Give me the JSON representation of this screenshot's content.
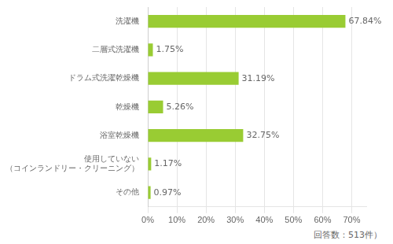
{
  "chart_data": {
    "type": "bar",
    "orientation": "horizontal",
    "categories": [
      "その他",
      "使用していない\n（コインランドリー・クリーニング）",
      "浴室乾燥機",
      "乾燥機",
      "ドラム式洗濯乾燥機",
      "二層式洗濯機",
      "洗濯機"
    ],
    "values": [
      0.97,
      1.17,
      32.75,
      5.26,
      31.19,
      1.75,
      67.84
    ],
    "value_labels": [
      "0.97%",
      "1.17%",
      "32.75%",
      "5.26%",
      "31.19%",
      "1.75%",
      "67.84%"
    ],
    "data_labels": true,
    "color": "#99cc33",
    "xlim": [
      0,
      75
    ],
    "xticks": [
      {
        "value": 0,
        "label": "0%"
      },
      {
        "value": 10,
        "label": "10%"
      },
      {
        "value": 20,
        "label": "20%"
      },
      {
        "value": 30,
        "label": "30%"
      },
      {
        "value": 40,
        "label": "40%"
      },
      {
        "value": 50,
        "label": "50%"
      },
      {
        "value": 60,
        "label": "60%"
      },
      {
        "value": 70,
        "label": "70%"
      }
    ],
    "grid": true,
    "annotations": [
      "回答数：513件）"
    ]
  }
}
